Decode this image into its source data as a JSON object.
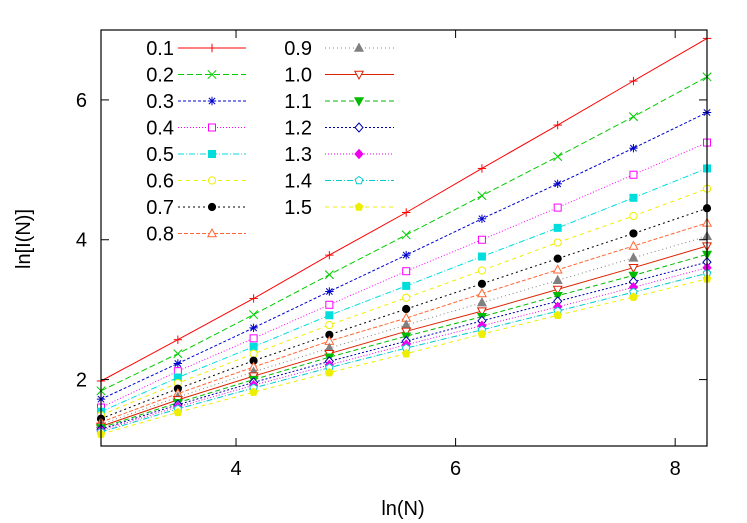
{
  "chart_data": {
    "type": "line",
    "title": "",
    "xlabel": "ln(N)",
    "ylabel": "ln[I(N)]",
    "xlim": [
      2.77,
      8.29
    ],
    "ylim": [
      1.05,
      7.0
    ],
    "xticks": [
      4,
      6,
      8
    ],
    "yticks": [
      2,
      4,
      6
    ],
    "x": [
      2.77,
      3.47,
      4.16,
      4.85,
      5.55,
      6.24,
      6.93,
      7.62,
      8.29
    ],
    "series": [
      {
        "name": "0.1",
        "color": "#ff0000",
        "marker": "plus",
        "dash": "none",
        "values": [
          1.98,
          2.57,
          3.16,
          3.78,
          4.39,
          5.02,
          5.64,
          6.27,
          6.88
        ]
      },
      {
        "name": "0.2",
        "color": "#00cc00",
        "marker": "x",
        "dash": "6,3",
        "values": [
          1.84,
          2.37,
          2.93,
          3.5,
          4.07,
          4.63,
          5.19,
          5.76,
          6.33
        ]
      },
      {
        "name": "0.3",
        "color": "#0000cc",
        "marker": "star",
        "dash": "3,2",
        "values": [
          1.72,
          2.23,
          2.74,
          3.26,
          3.78,
          4.3,
          4.8,
          5.31,
          5.82
        ]
      },
      {
        "name": "0.4",
        "color": "#ff00ff",
        "marker": "square-open",
        "dash": "1,2",
        "values": [
          1.6,
          2.12,
          2.59,
          3.07,
          3.55,
          4.0,
          4.46,
          4.93,
          5.39
        ]
      },
      {
        "name": "0.5",
        "color": "#00dddd",
        "marker": "square-filled",
        "dash": "6,2,1,2",
        "values": [
          1.54,
          2.03,
          2.47,
          2.92,
          3.34,
          3.76,
          4.17,
          4.6,
          5.02
        ]
      },
      {
        "name": "0.6",
        "color": "#eeee00",
        "marker": "circle-open",
        "dash": "4,4",
        "values": [
          1.49,
          1.95,
          2.37,
          2.78,
          3.17,
          3.56,
          3.96,
          4.34,
          4.73
        ]
      },
      {
        "name": "0.7",
        "color": "#000000",
        "marker": "circle-filled",
        "dash": "2,3",
        "values": [
          1.44,
          1.87,
          2.27,
          2.64,
          3.01,
          3.37,
          3.73,
          4.09,
          4.45
        ]
      },
      {
        "name": "0.8",
        "color": "#ff6633",
        "marker": "triangle-open",
        "dash": "4,2",
        "values": [
          1.39,
          1.8,
          2.18,
          2.55,
          2.88,
          3.23,
          3.57,
          3.91,
          4.24
        ]
      },
      {
        "name": "0.9",
        "color": "#808080",
        "marker": "triangle-filled",
        "dash": "1,3",
        "values": [
          1.36,
          1.75,
          2.11,
          2.45,
          2.78,
          3.1,
          3.42,
          3.74,
          4.05
        ]
      },
      {
        "name": "1.0",
        "color": "#dd2200",
        "marker": "triangle-down-open",
        "dash": "none",
        "values": [
          1.33,
          1.71,
          2.05,
          2.37,
          2.69,
          2.98,
          3.29,
          3.6,
          3.91
        ]
      },
      {
        "name": "1.1",
        "color": "#00bb00",
        "marker": "triangle-down-filled",
        "dash": "5,3",
        "values": [
          1.31,
          1.67,
          2.0,
          2.32,
          2.62,
          2.9,
          3.2,
          3.49,
          3.79
        ]
      },
      {
        "name": "1.2",
        "color": "#0000aa",
        "marker": "diamond-open",
        "dash": "2,2",
        "values": [
          1.29,
          1.64,
          1.96,
          2.26,
          2.55,
          2.84,
          3.12,
          3.4,
          3.68
        ]
      },
      {
        "name": "1.3",
        "color": "#ee00ee",
        "marker": "diamond-filled",
        "dash": "1,2",
        "values": [
          1.27,
          1.61,
          1.92,
          2.21,
          2.5,
          2.77,
          3.04,
          3.32,
          3.6
        ]
      },
      {
        "name": "1.4",
        "color": "#00cccc",
        "marker": "pentagon-open",
        "dash": "6,2,1,2",
        "values": [
          1.25,
          1.58,
          1.88,
          2.17,
          2.45,
          2.71,
          2.98,
          3.25,
          3.52
        ]
      },
      {
        "name": "1.5",
        "color": "#eeee00",
        "marker": "pentagon-filled",
        "dash": "4,4",
        "values": [
          1.22,
          1.53,
          1.82,
          2.1,
          2.37,
          2.65,
          2.92,
          3.18,
          3.44
        ]
      }
    ]
  }
}
